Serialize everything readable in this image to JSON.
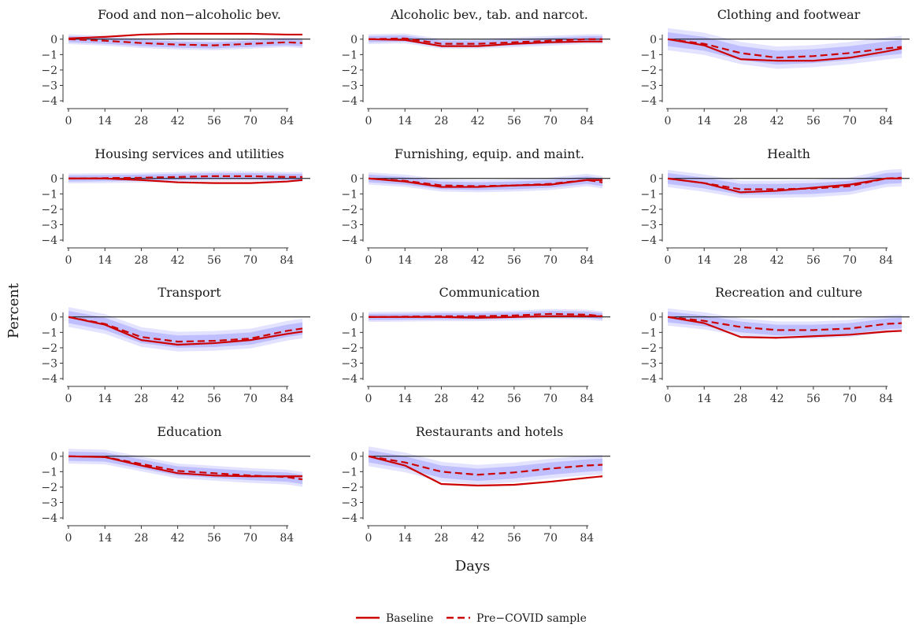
{
  "figure": {
    "ylabel": "Percent",
    "xlabel": "Days",
    "legend": [
      {
        "label": "Baseline",
        "style": "solid"
      },
      {
        "label": "Pre−COVID sample",
        "style": "dashed"
      }
    ],
    "colors": {
      "line": "#cc0000",
      "band_inner": "#b8b8ff",
      "band_outer": "#dedeff",
      "zero": "#000000"
    }
  },
  "chart_data": [
    {
      "type": "line",
      "title": "Food and non−alcoholic bev.",
      "x": [
        0,
        14,
        28,
        42,
        56,
        70,
        84,
        90
      ],
      "ylim": [
        -4.2,
        0.5
      ],
      "yticks": [
        0,
        -1,
        -2,
        -3,
        -4
      ],
      "xticks": [
        0,
        14,
        28,
        42,
        56,
        70,
        84
      ],
      "series": [
        {
          "name": "Baseline",
          "values": [
            0.05,
            0.15,
            0.3,
            0.35,
            0.35,
            0.35,
            0.3,
            0.3
          ]
        },
        {
          "name": "Pre−COVID sample",
          "values": [
            0,
            -0.1,
            -0.25,
            -0.35,
            -0.4,
            -0.3,
            -0.2,
            -0.25
          ],
          "band": 0.2
        }
      ]
    },
    {
      "type": "line",
      "title": "Alcoholic bev., tab. and narcot.",
      "x": [
        0,
        14,
        28,
        42,
        56,
        70,
        84,
        90
      ],
      "ylim": [
        -4.2,
        0.5
      ],
      "yticks": [
        0,
        -1,
        -2,
        -3,
        -4
      ],
      "xticks": [
        0,
        14,
        28,
        42,
        56,
        70,
        84
      ],
      "series": [
        {
          "name": "Baseline",
          "values": [
            0,
            -0.05,
            -0.45,
            -0.45,
            -0.3,
            -0.2,
            -0.15,
            -0.15
          ],
          "band": 0
        },
        {
          "name": "Pre−COVID sample",
          "values": [
            0,
            0.05,
            -0.3,
            -0.3,
            -0.2,
            -0.1,
            0,
            0
          ],
          "band": 0.2
        }
      ]
    },
    {
      "type": "line",
      "title": "Clothing and footwear",
      "x": [
        0,
        14,
        28,
        42,
        56,
        70,
        84,
        90
      ],
      "ylim": [
        -4.2,
        0.5
      ],
      "yticks": [
        0,
        -1,
        -2,
        -3,
        -4
      ],
      "xticks": [
        0,
        14,
        28,
        42,
        56,
        70,
        84
      ],
      "series": [
        {
          "name": "Baseline",
          "values": [
            0,
            -0.4,
            -1.3,
            -1.4,
            -1.4,
            -1.2,
            -0.8,
            -0.6
          ]
        },
        {
          "name": "Pre−COVID sample",
          "values": [
            0,
            -0.3,
            -0.9,
            -1.2,
            -1.1,
            -0.9,
            -0.6,
            -0.5
          ],
          "band": 0.45
        }
      ]
    },
    {
      "type": "line",
      "title": "Housing services and utilities",
      "x": [
        0,
        14,
        28,
        42,
        56,
        70,
        84,
        90
      ],
      "ylim": [
        -4.2,
        0.5
      ],
      "yticks": [
        0,
        -1,
        -2,
        -3,
        -4
      ],
      "xticks": [
        0,
        14,
        28,
        42,
        56,
        70,
        84
      ],
      "series": [
        {
          "name": "Baseline",
          "values": [
            0,
            0,
            -0.1,
            -0.25,
            -0.3,
            -0.3,
            -0.2,
            -0.1
          ]
        },
        {
          "name": "Pre−COVID sample",
          "values": [
            0,
            0.02,
            0.05,
            0.1,
            0.15,
            0.15,
            0.1,
            0.1
          ],
          "band": 0.2
        }
      ]
    },
    {
      "type": "line",
      "title": "Furnishing, equip. and maint.",
      "x": [
        0,
        14,
        28,
        42,
        56,
        70,
        84,
        90
      ],
      "ylim": [
        -4.2,
        0.5
      ],
      "yticks": [
        0,
        -1,
        -2,
        -3,
        -4
      ],
      "xticks": [
        0,
        14,
        28,
        42,
        56,
        70,
        84
      ],
      "series": [
        {
          "name": "Baseline",
          "values": [
            0,
            -0.2,
            -0.55,
            -0.55,
            -0.45,
            -0.4,
            -0.1,
            -0.1
          ]
        },
        {
          "name": "Pre−COVID sample",
          "values": [
            0,
            -0.15,
            -0.45,
            -0.5,
            -0.45,
            -0.35,
            -0.1,
            -0.25
          ],
          "band": 0.25
        }
      ]
    },
    {
      "type": "line",
      "title": "Health",
      "x": [
        0,
        14,
        28,
        42,
        56,
        70,
        84,
        90
      ],
      "ylim": [
        -4.2,
        0.5
      ],
      "yticks": [
        0,
        -1,
        -2,
        -3,
        -4
      ],
      "xticks": [
        0,
        14,
        28,
        42,
        56,
        70,
        84
      ],
      "series": [
        {
          "name": "Baseline",
          "values": [
            0,
            -0.3,
            -0.9,
            -0.8,
            -0.6,
            -0.4,
            0,
            0
          ]
        },
        {
          "name": "Pre−COVID sample",
          "values": [
            0,
            -0.3,
            -0.7,
            -0.7,
            -0.65,
            -0.5,
            0,
            0.05
          ],
          "band": 0.35
        }
      ]
    },
    {
      "type": "line",
      "title": "Transport",
      "x": [
        0,
        14,
        28,
        42,
        56,
        70,
        84,
        90
      ],
      "ylim": [
        -4.2,
        0.5
      ],
      "yticks": [
        0,
        -1,
        -2,
        -3,
        -4
      ],
      "xticks": [
        0,
        14,
        28,
        42,
        56,
        70,
        84
      ],
      "series": [
        {
          "name": "Baseline",
          "values": [
            0,
            -0.5,
            -1.5,
            -1.8,
            -1.7,
            -1.5,
            -1.1,
            -0.95
          ]
        },
        {
          "name": "Pre−COVID sample",
          "values": [
            0,
            -0.45,
            -1.3,
            -1.6,
            -1.55,
            -1.4,
            -0.9,
            -0.75
          ],
          "band": 0.4
        }
      ]
    },
    {
      "type": "line",
      "title": "Communication",
      "x": [
        0,
        14,
        28,
        42,
        56,
        70,
        84,
        90
      ],
      "ylim": [
        -4.2,
        0.5
      ],
      "yticks": [
        0,
        -1,
        -2,
        -3,
        -4
      ],
      "xticks": [
        0,
        14,
        28,
        42,
        56,
        70,
        84
      ],
      "series": [
        {
          "name": "Baseline",
          "values": [
            0,
            0,
            0,
            -0.05,
            0,
            0.05,
            0.05,
            0.05
          ]
        },
        {
          "name": "Pre−COVID sample",
          "values": [
            0,
            0.02,
            0.05,
            0.05,
            0.1,
            0.2,
            0.15,
            0.05
          ],
          "band": 0.2
        }
      ]
    },
    {
      "type": "line",
      "title": "Recreation and culture",
      "x": [
        0,
        14,
        28,
        42,
        56,
        70,
        84,
        90
      ],
      "ylim": [
        -4.2,
        0.5
      ],
      "yticks": [
        0,
        -1,
        -2,
        -3,
        -4
      ],
      "xticks": [
        0,
        14,
        28,
        42,
        56,
        70,
        84
      ],
      "series": [
        {
          "name": "Baseline",
          "values": [
            0,
            -0.4,
            -1.3,
            -1.35,
            -1.25,
            -1.15,
            -0.95,
            -0.9
          ]
        },
        {
          "name": "Pre−COVID sample",
          "values": [
            0,
            -0.25,
            -0.65,
            -0.85,
            -0.85,
            -0.75,
            -0.45,
            -0.4
          ],
          "band": 0.35
        }
      ]
    },
    {
      "type": "line",
      "title": "Education",
      "x": [
        0,
        14,
        28,
        42,
        56,
        70,
        84,
        90
      ],
      "ylim": [
        -4.2,
        0.5
      ],
      "yticks": [
        0,
        -1,
        -2,
        -3,
        -4
      ],
      "xticks": [
        0,
        14,
        28,
        42,
        56,
        70,
        84
      ],
      "series": [
        {
          "name": "Baseline",
          "values": [
            0,
            -0.05,
            -0.6,
            -1.1,
            -1.25,
            -1.3,
            -1.3,
            -1.3
          ]
        },
        {
          "name": "Pre−COVID sample",
          "values": [
            0,
            -0.05,
            -0.5,
            -0.95,
            -1.1,
            -1.25,
            -1.35,
            -1.5
          ],
          "band": 0.3
        }
      ]
    },
    {
      "type": "line",
      "title": "Restaurants and hotels",
      "x": [
        0,
        14,
        28,
        42,
        56,
        70,
        84,
        90
      ],
      "ylim": [
        -4.2,
        0.5
      ],
      "yticks": [
        0,
        -1,
        -2,
        -3,
        -4
      ],
      "xticks": [
        0,
        14,
        28,
        42,
        56,
        70,
        84
      ],
      "series": [
        {
          "name": "Baseline",
          "values": [
            0,
            -0.6,
            -1.8,
            -1.9,
            -1.85,
            -1.65,
            -1.4,
            -1.3
          ]
        },
        {
          "name": "Pre−COVID sample",
          "values": [
            0,
            -0.4,
            -1.0,
            -1.2,
            -1.05,
            -0.8,
            -0.6,
            -0.55
          ],
          "band": 0.4
        }
      ]
    }
  ]
}
